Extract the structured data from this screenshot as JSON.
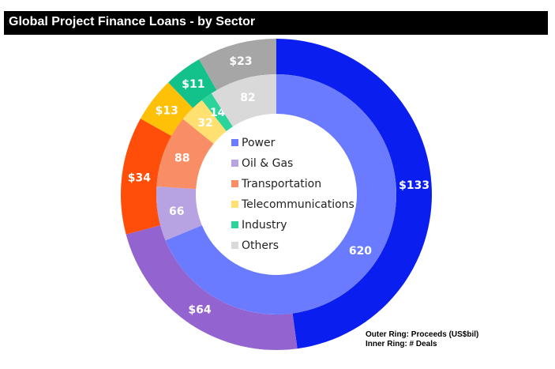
{
  "header": {
    "title": "Global Project Finance Loans - by Sector"
  },
  "notes": {
    "outer": "Outer Ring: Proceeds (US$bil)",
    "inner": "Inner Ring: # Deals"
  },
  "chart_data": {
    "type": "pie",
    "variant": "double-donut",
    "title": "Global Project Finance Loans - by Sector",
    "categories": [
      "Power",
      "Oil & Gas",
      "Transportation",
      "Telecommunications",
      "Industry",
      "Others"
    ],
    "series": [
      {
        "ring": "outer",
        "values": [
          133,
          64,
          34,
          13,
          11,
          23
        ],
        "labels": [
          "$133",
          "$64",
          "$34",
          "$13",
          "$11",
          "$23"
        ],
        "colors": [
          "#0a1ef0",
          "#9364cf",
          "#ff4d0a",
          "#ffc107",
          "#13c28a",
          "#a6a6a6"
        ]
      },
      {
        "ring": "inner",
        "values": [
          620,
          66,
          88,
          32,
          14,
          82
        ],
        "labels": [
          "620",
          "66",
          "88",
          "32",
          "14",
          "82"
        ],
        "colors": [
          "#6b7bff",
          "#b7a2e2",
          "#f98e66",
          "#ffe070",
          "#2bd49b",
          "#d9d9d9"
        ]
      }
    ],
    "legend": {
      "placement": "center",
      "entries": [
        "Power",
        "Oil & Gas",
        "Transportation",
        "Telecommunications",
        "Industry",
        "Others"
      ],
      "colors": [
        "#6b7bff",
        "#b7a2e2",
        "#f98e66",
        "#ffe070",
        "#2bd49b",
        "#d9d9d9"
      ]
    }
  }
}
